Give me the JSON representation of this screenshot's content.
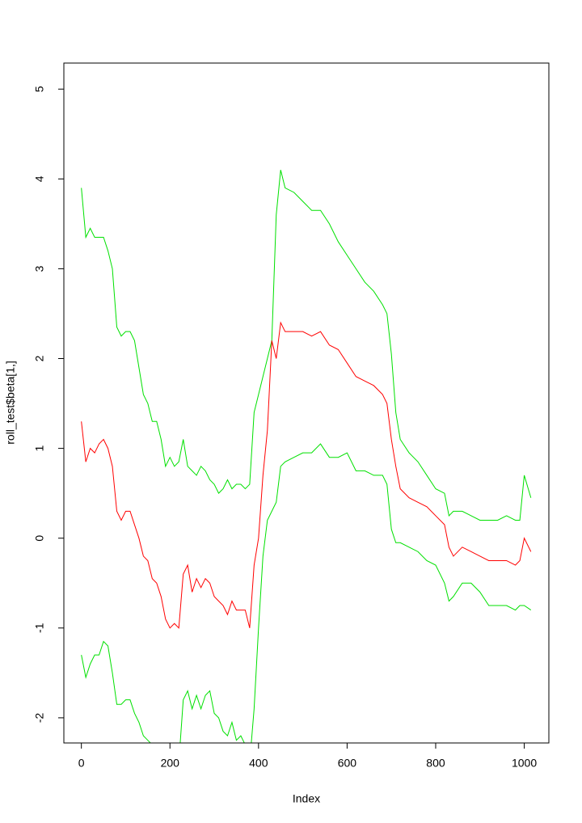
{
  "chart_data": {
    "type": "line",
    "x_label": "Index",
    "y_label": "roll_test$beta[1,]",
    "x": [
      0,
      10,
      20,
      30,
      40,
      50,
      60,
      70,
      80,
      90,
      100,
      110,
      120,
      130,
      140,
      150,
      160,
      170,
      180,
      190,
      200,
      210,
      220,
      230,
      240,
      250,
      260,
      270,
      280,
      290,
      300,
      310,
      320,
      330,
      340,
      350,
      360,
      370,
      380,
      390,
      400,
      410,
      420,
      430,
      440,
      450,
      460,
      480,
      500,
      520,
      540,
      560,
      580,
      600,
      620,
      640,
      660,
      680,
      690,
      700,
      710,
      720,
      740,
      760,
      780,
      800,
      820,
      830,
      840,
      860,
      880,
      900,
      920,
      940,
      960,
      980,
      990,
      1000,
      1015
    ],
    "series": [
      {
        "color": "#00e000",
        "values": [
          3.9,
          3.35,
          3.45,
          3.35,
          3.35,
          3.35,
          3.2,
          3.0,
          2.35,
          2.25,
          2.3,
          2.3,
          2.2,
          1.9,
          1.6,
          1.5,
          1.3,
          1.3,
          1.1,
          0.8,
          0.9,
          0.8,
          0.85,
          1.1,
          0.8,
          0.75,
          0.7,
          0.8,
          0.75,
          0.65,
          0.6,
          0.5,
          0.55,
          0.65,
          0.55,
          0.6,
          0.6,
          0.55,
          0.6,
          1.4,
          1.6,
          1.8,
          2.0,
          2.2,
          3.6,
          4.1,
          3.9,
          3.85,
          3.75,
          3.65,
          3.65,
          3.5,
          3.3,
          3.15,
          3.0,
          2.85,
          2.75,
          2.6,
          2.5,
          2.05,
          1.4,
          1.1,
          0.95,
          0.85,
          0.7,
          0.55,
          0.5,
          0.25,
          0.3,
          0.3,
          0.25,
          0.2,
          0.2,
          0.2,
          0.25,
          0.2,
          0.2,
          0.7,
          0.45
        ]
      },
      {
        "color": "#ff0000",
        "values": [
          1.3,
          0.85,
          1.0,
          0.95,
          1.05,
          1.1,
          1.0,
          0.8,
          0.3,
          0.2,
          0.3,
          0.3,
          0.15,
          0.0,
          -0.2,
          -0.25,
          -0.45,
          -0.5,
          -0.65,
          -0.9,
          -1.0,
          -0.95,
          -1.0,
          -0.4,
          -0.3,
          -0.6,
          -0.45,
          -0.55,
          -0.45,
          -0.5,
          -0.65,
          -0.7,
          -0.75,
          -0.85,
          -0.7,
          -0.8,
          -0.8,
          -0.8,
          -1.0,
          -0.3,
          0.0,
          0.7,
          1.2,
          2.2,
          2.0,
          2.4,
          2.3,
          2.3,
          2.3,
          2.25,
          2.3,
          2.15,
          2.1,
          1.95,
          1.8,
          1.75,
          1.7,
          1.6,
          1.5,
          1.1,
          0.8,
          0.55,
          0.45,
          0.4,
          0.35,
          0.25,
          0.15,
          -0.1,
          -0.2,
          -0.1,
          -0.15,
          -0.2,
          -0.25,
          -0.25,
          -0.25,
          -0.3,
          -0.25,
          0.0,
          -0.15
        ]
      },
      {
        "color": "#00e000",
        "values": [
          -1.3,
          -1.55,
          -1.4,
          -1.3,
          -1.3,
          -1.15,
          -1.2,
          -1.5,
          -1.85,
          -1.85,
          -1.8,
          -1.8,
          -1.95,
          -2.05,
          -2.2,
          -2.25,
          -2.3,
          -2.35,
          -2.4,
          -2.5,
          -2.6,
          -2.55,
          -2.5,
          -1.8,
          -1.7,
          -1.9,
          -1.75,
          -1.9,
          -1.75,
          -1.7,
          -1.95,
          -2.0,
          -2.15,
          -2.2,
          -2.05,
          -2.25,
          -2.2,
          -2.3,
          -2.5,
          -1.9,
          -1.0,
          -0.2,
          0.2,
          0.3,
          0.4,
          0.8,
          0.85,
          0.9,
          0.95,
          0.95,
          1.05,
          0.9,
          0.9,
          0.95,
          0.75,
          0.75,
          0.7,
          0.7,
          0.6,
          0.1,
          -0.05,
          -0.05,
          -0.1,
          -0.15,
          -0.25,
          -0.3,
          -0.5,
          -0.7,
          -0.65,
          -0.5,
          -0.5,
          -0.6,
          -0.75,
          -0.75,
          -0.75,
          -0.8,
          -0.75,
          -0.75,
          -0.8
        ]
      }
    ],
    "xlim": [
      -39.56,
      1055.56
    ],
    "ylim": [
      -2.28,
      5.29
    ],
    "xticks": [
      0,
      200,
      400,
      600,
      800,
      1000
    ],
    "yticks": [
      -2,
      -1,
      0,
      1,
      2,
      3,
      4,
      5
    ]
  }
}
